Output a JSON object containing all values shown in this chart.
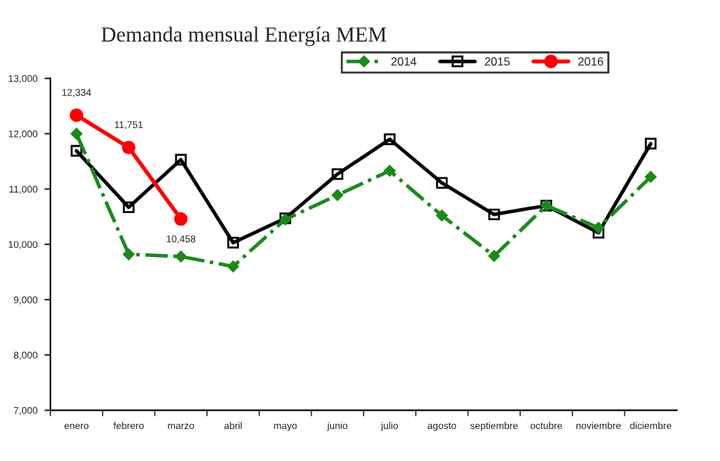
{
  "chart_data": {
    "type": "line",
    "title": "Demanda mensual Energía MEM",
    "categories": [
      "enero",
      "febrero",
      "marzo",
      "abril",
      "mayo",
      "junio",
      "julio",
      "agosto",
      "septiembre",
      "octubre",
      "noviembre",
      "diciembre"
    ],
    "series": [
      {
        "name": "2014",
        "color": "#1a8a1a",
        "marker": "diamond",
        "line_style": "dashed",
        "values": [
          12000,
          9820,
          9780,
          9600,
          10450,
          10890,
          11330,
          10520,
          9790,
          10700,
          10300,
          11220
        ]
      },
      {
        "name": "2015",
        "color": "#000000",
        "marker": "square",
        "line_style": "solid",
        "values": [
          11690,
          10670,
          11530,
          10030,
          10470,
          11270,
          11900,
          11110,
          10540,
          10700,
          10210,
          11820
        ]
      },
      {
        "name": "2016",
        "color": "#ff0000",
        "marker": "circle",
        "line_style": "solid",
        "values": [
          12334,
          11751,
          10458,
          null,
          null,
          null,
          null,
          null,
          null,
          null,
          null,
          null
        ],
        "value_labels": [
          "12,334",
          "11,751",
          "10,458",
          null,
          null,
          null,
          null,
          null,
          null,
          null,
          null,
          null
        ]
      }
    ],
    "ylim": [
      7000,
      13000
    ],
    "yticks": [
      {
        "value": 7000,
        "label": "7,000"
      },
      {
        "value": 8000,
        "label": "8,000"
      },
      {
        "value": 9000,
        "label": "9,000"
      },
      {
        "value": 10000,
        "label": "10,000"
      },
      {
        "value": 11000,
        "label": "11,000"
      },
      {
        "value": 12000,
        "label": "12,000"
      },
      {
        "value": 13000,
        "label": "13,000"
      }
    ],
    "grid": false,
    "legend": "top right"
  }
}
